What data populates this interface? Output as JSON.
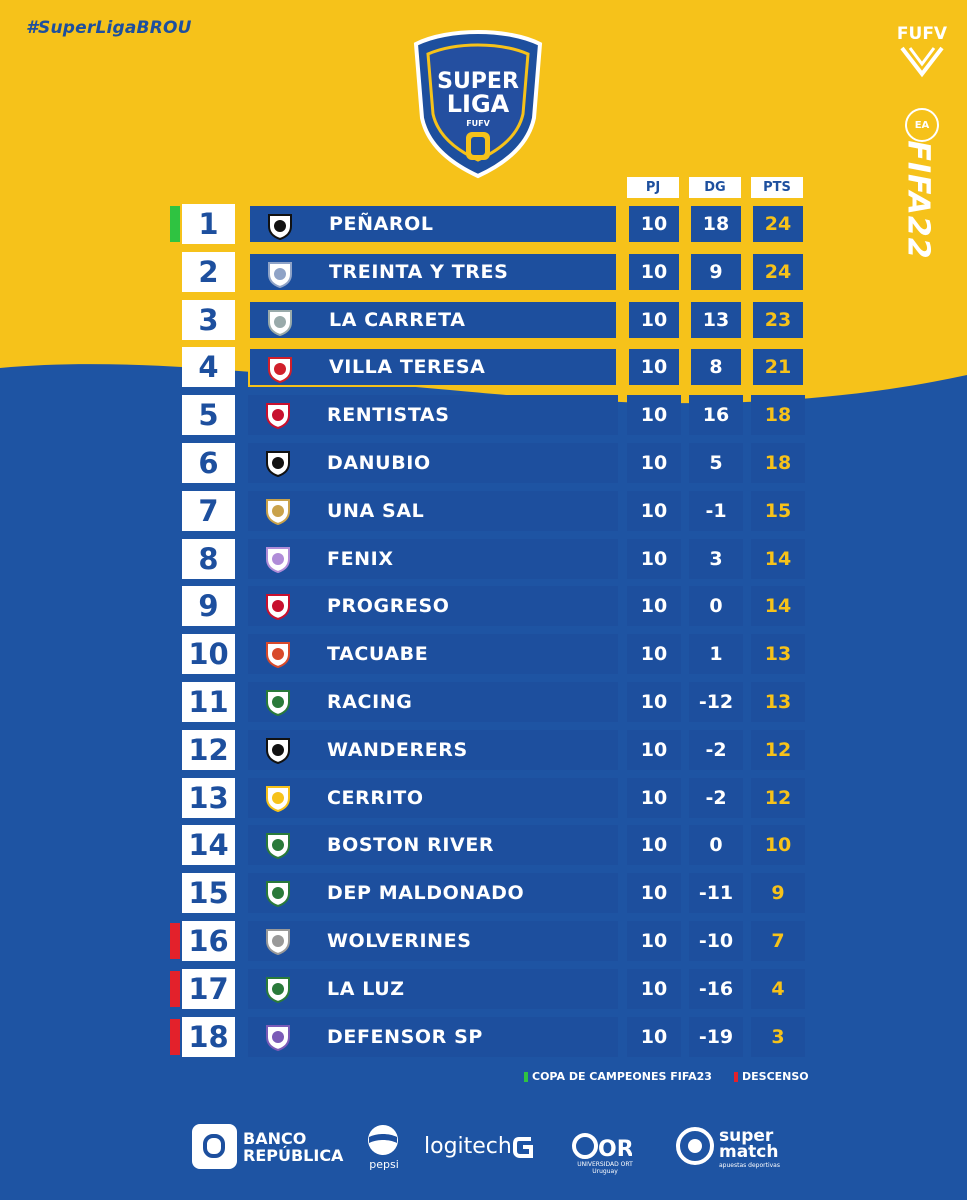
{
  "hashtag": "#SuperLigaBROU",
  "logo": {
    "line1": "SUPER",
    "line2": "LIGA",
    "line3": "FUFV"
  },
  "right_brand": {
    "fufv": "FUFV",
    "ea": "EA",
    "fifa": "FIFA22"
  },
  "columns": {
    "pj": "PJ",
    "dg": "DG",
    "pts": "PTS"
  },
  "colors": {
    "yellow": "#f6c21a",
    "blue": "#1e54a3",
    "row_blue": "#1d4f9e",
    "qualify": "#2fc341",
    "relegation": "#e3212b"
  },
  "standings": [
    {
      "pos": "1",
      "team": "PEÑAROL",
      "pj": "10",
      "dg": "18",
      "pts": "24",
      "marker": "qualify",
      "icon": "penarol-crest-icon"
    },
    {
      "pos": "2",
      "team": "TREINTA Y TRES",
      "pj": "10",
      "dg": "9",
      "pts": "24",
      "marker": "none",
      "icon": "treinta-y-tres-crest-icon"
    },
    {
      "pos": "3",
      "team": "LA CARRETA",
      "pj": "10",
      "dg": "13",
      "pts": "23",
      "marker": "none",
      "icon": "la-carreta-crest-icon"
    },
    {
      "pos": "4",
      "team": "VILLA TERESA",
      "pj": "10",
      "dg": "8",
      "pts": "21",
      "marker": "none",
      "icon": "villa-teresa-crest-icon"
    },
    {
      "pos": "5",
      "team": "RENTISTAS",
      "pj": "10",
      "dg": "16",
      "pts": "18",
      "marker": "none",
      "icon": "rentistas-crest-icon"
    },
    {
      "pos": "6",
      "team": "DANUBIO",
      "pj": "10",
      "dg": "5",
      "pts": "18",
      "marker": "none",
      "icon": "danubio-crest-icon"
    },
    {
      "pos": "7",
      "team": "UNA SAL",
      "pj": "10",
      "dg": "-1",
      "pts": "15",
      "marker": "none",
      "icon": "una-sal-crest-icon"
    },
    {
      "pos": "8",
      "team": "FENIX",
      "pj": "10",
      "dg": "3",
      "pts": "14",
      "marker": "none",
      "icon": "fenix-crest-icon"
    },
    {
      "pos": "9",
      "team": "PROGRESO",
      "pj": "10",
      "dg": "0",
      "pts": "14",
      "marker": "none",
      "icon": "progreso-crest-icon"
    },
    {
      "pos": "10",
      "team": "TACUABE",
      "pj": "10",
      "dg": "1",
      "pts": "13",
      "marker": "none",
      "icon": "tacuabe-crest-icon"
    },
    {
      "pos": "11",
      "team": "RACING",
      "pj": "10",
      "dg": "-12",
      "pts": "13",
      "marker": "none",
      "icon": "racing-crest-icon"
    },
    {
      "pos": "12",
      "team": "WANDERERS",
      "pj": "10",
      "dg": "-2",
      "pts": "12",
      "marker": "none",
      "icon": "wanderers-crest-icon"
    },
    {
      "pos": "13",
      "team": "CERRITO",
      "pj": "10",
      "dg": "-2",
      "pts": "12",
      "marker": "none",
      "icon": "cerrito-crest-icon"
    },
    {
      "pos": "14",
      "team": "BOSTON RIVER",
      "pj": "10",
      "dg": "0",
      "pts": "10",
      "marker": "none",
      "icon": "boston-river-crest-icon"
    },
    {
      "pos": "15",
      "team": "DEP MALDONADO",
      "pj": "10",
      "dg": "-11",
      "pts": "9",
      "marker": "none",
      "icon": "dep-maldonado-crest-icon"
    },
    {
      "pos": "16",
      "team": "WOLVERINES",
      "pj": "10",
      "dg": "-10",
      "pts": "7",
      "marker": "relegation",
      "icon": "wolverines-crest-icon"
    },
    {
      "pos": "17",
      "team": "LA LUZ",
      "pj": "10",
      "dg": "-16",
      "pts": "4",
      "marker": "relegation",
      "icon": "la-luz-crest-icon"
    },
    {
      "pos": "18",
      "team": "DEFENSOR SP",
      "pj": "10",
      "dg": "-19",
      "pts": "3",
      "marker": "relegation",
      "icon": "defensor-sp-crest-icon"
    }
  ],
  "legend": {
    "qualify": "COPA DE CAMPEONES FIFA23",
    "relegation": "DESCENSO"
  },
  "sponsors": {
    "brou_line1": "BANCO",
    "brou_line2": "REPÚBLICA",
    "pepsi": "pepsi",
    "logitech": "logitech",
    "ort": "ORT",
    "ort_sub": "UNIVERSIDAD ORT",
    "ort_sub2": "Uruguay",
    "supermatch_line1": "super",
    "supermatch_line2": "match",
    "supermatch_sub": "apuestas deportivas"
  }
}
